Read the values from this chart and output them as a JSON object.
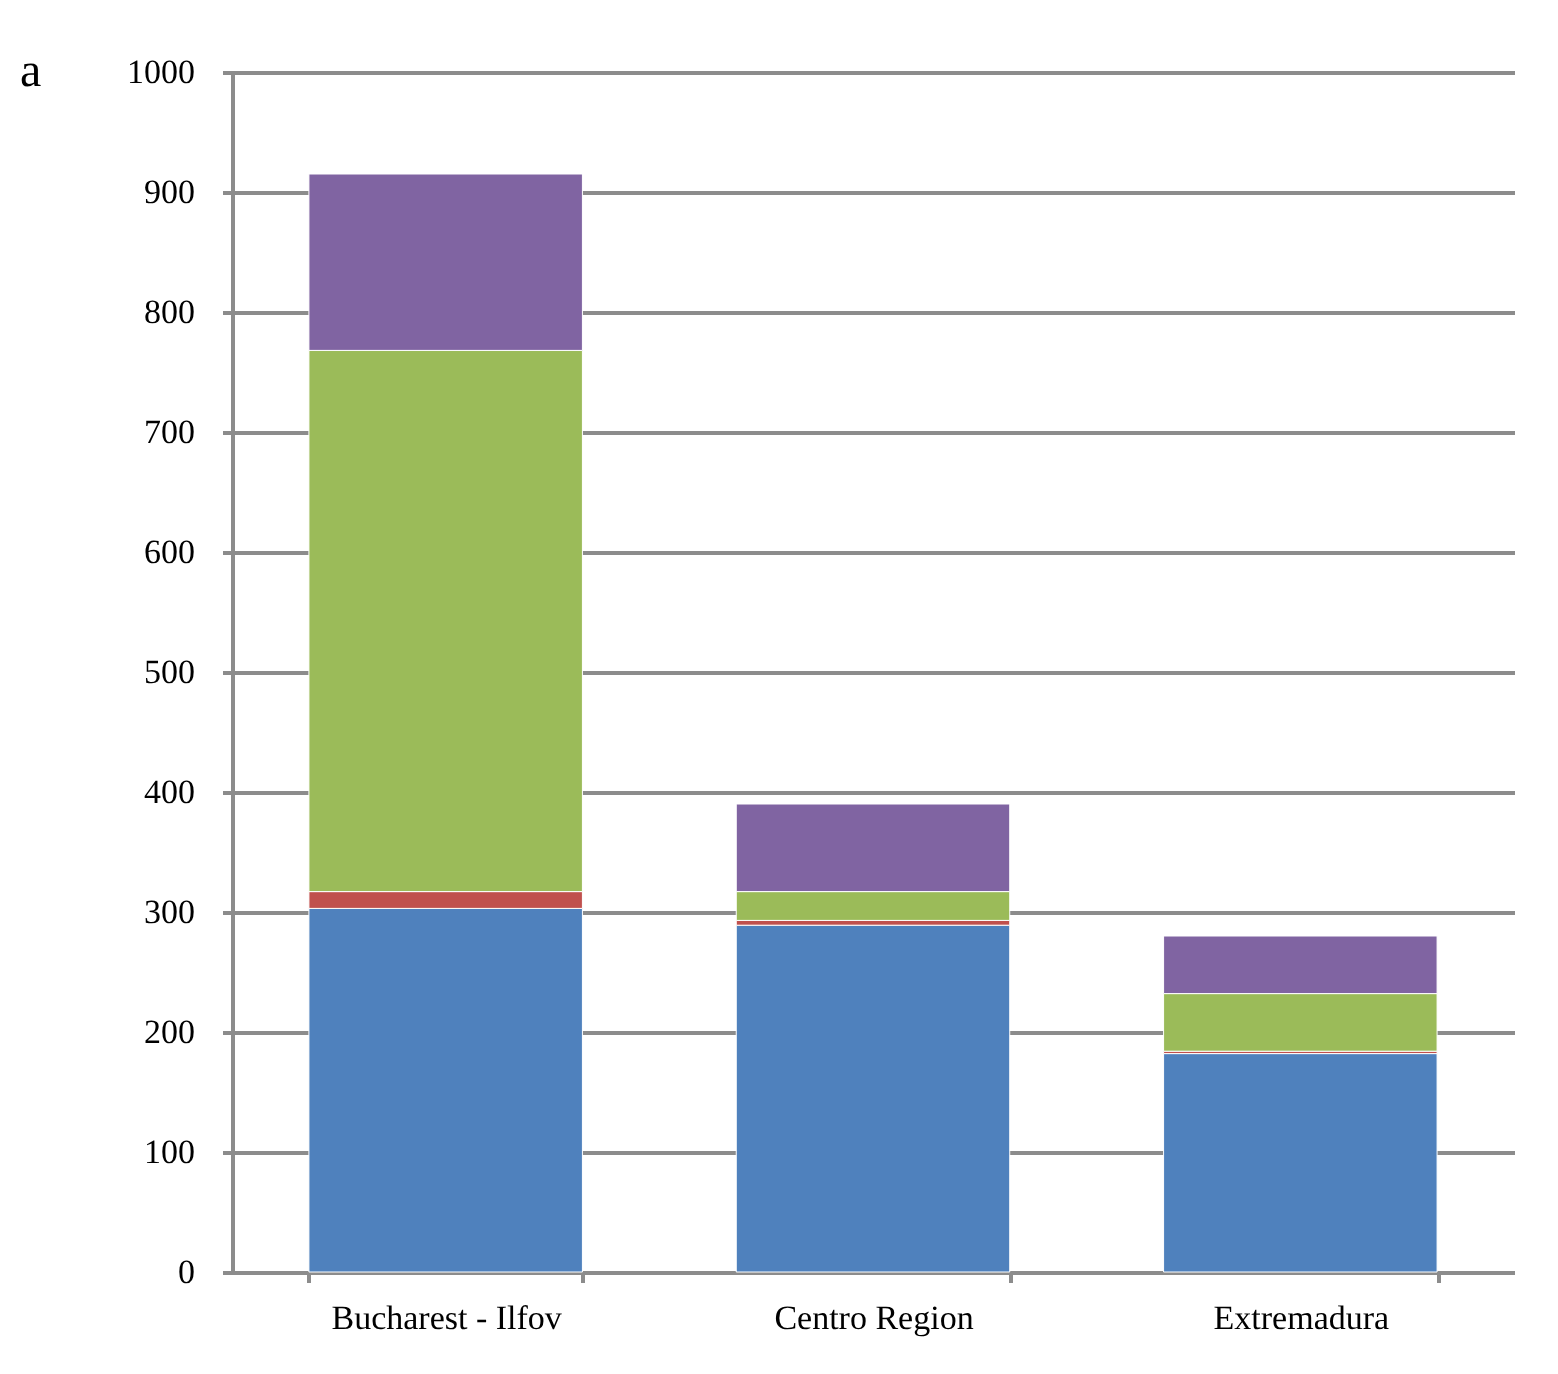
{
  "chart_data": {
    "type": "bar",
    "stacked": true,
    "categories": [
      "Bucharest - Ilfov",
      "Centro Region",
      "Extremadura"
    ],
    "series": [
      {
        "color": "#4f81bd",
        "values": [
          303,
          289,
          182
        ]
      },
      {
        "color": "#c0504d",
        "values": [
          14,
          4,
          2
        ]
      },
      {
        "color": "#9bbb59",
        "values": [
          451,
          24,
          48
        ]
      },
      {
        "color": "#8064a2",
        "values": [
          147,
          73,
          48
        ]
      }
    ],
    "ylim": [
      0,
      1000
    ],
    "yticks": [
      0,
      100,
      200,
      300,
      400,
      500,
      600,
      700,
      800,
      900,
      1000
    ],
    "grid": "y",
    "legend": false,
    "annotations": [
      "a"
    ]
  }
}
